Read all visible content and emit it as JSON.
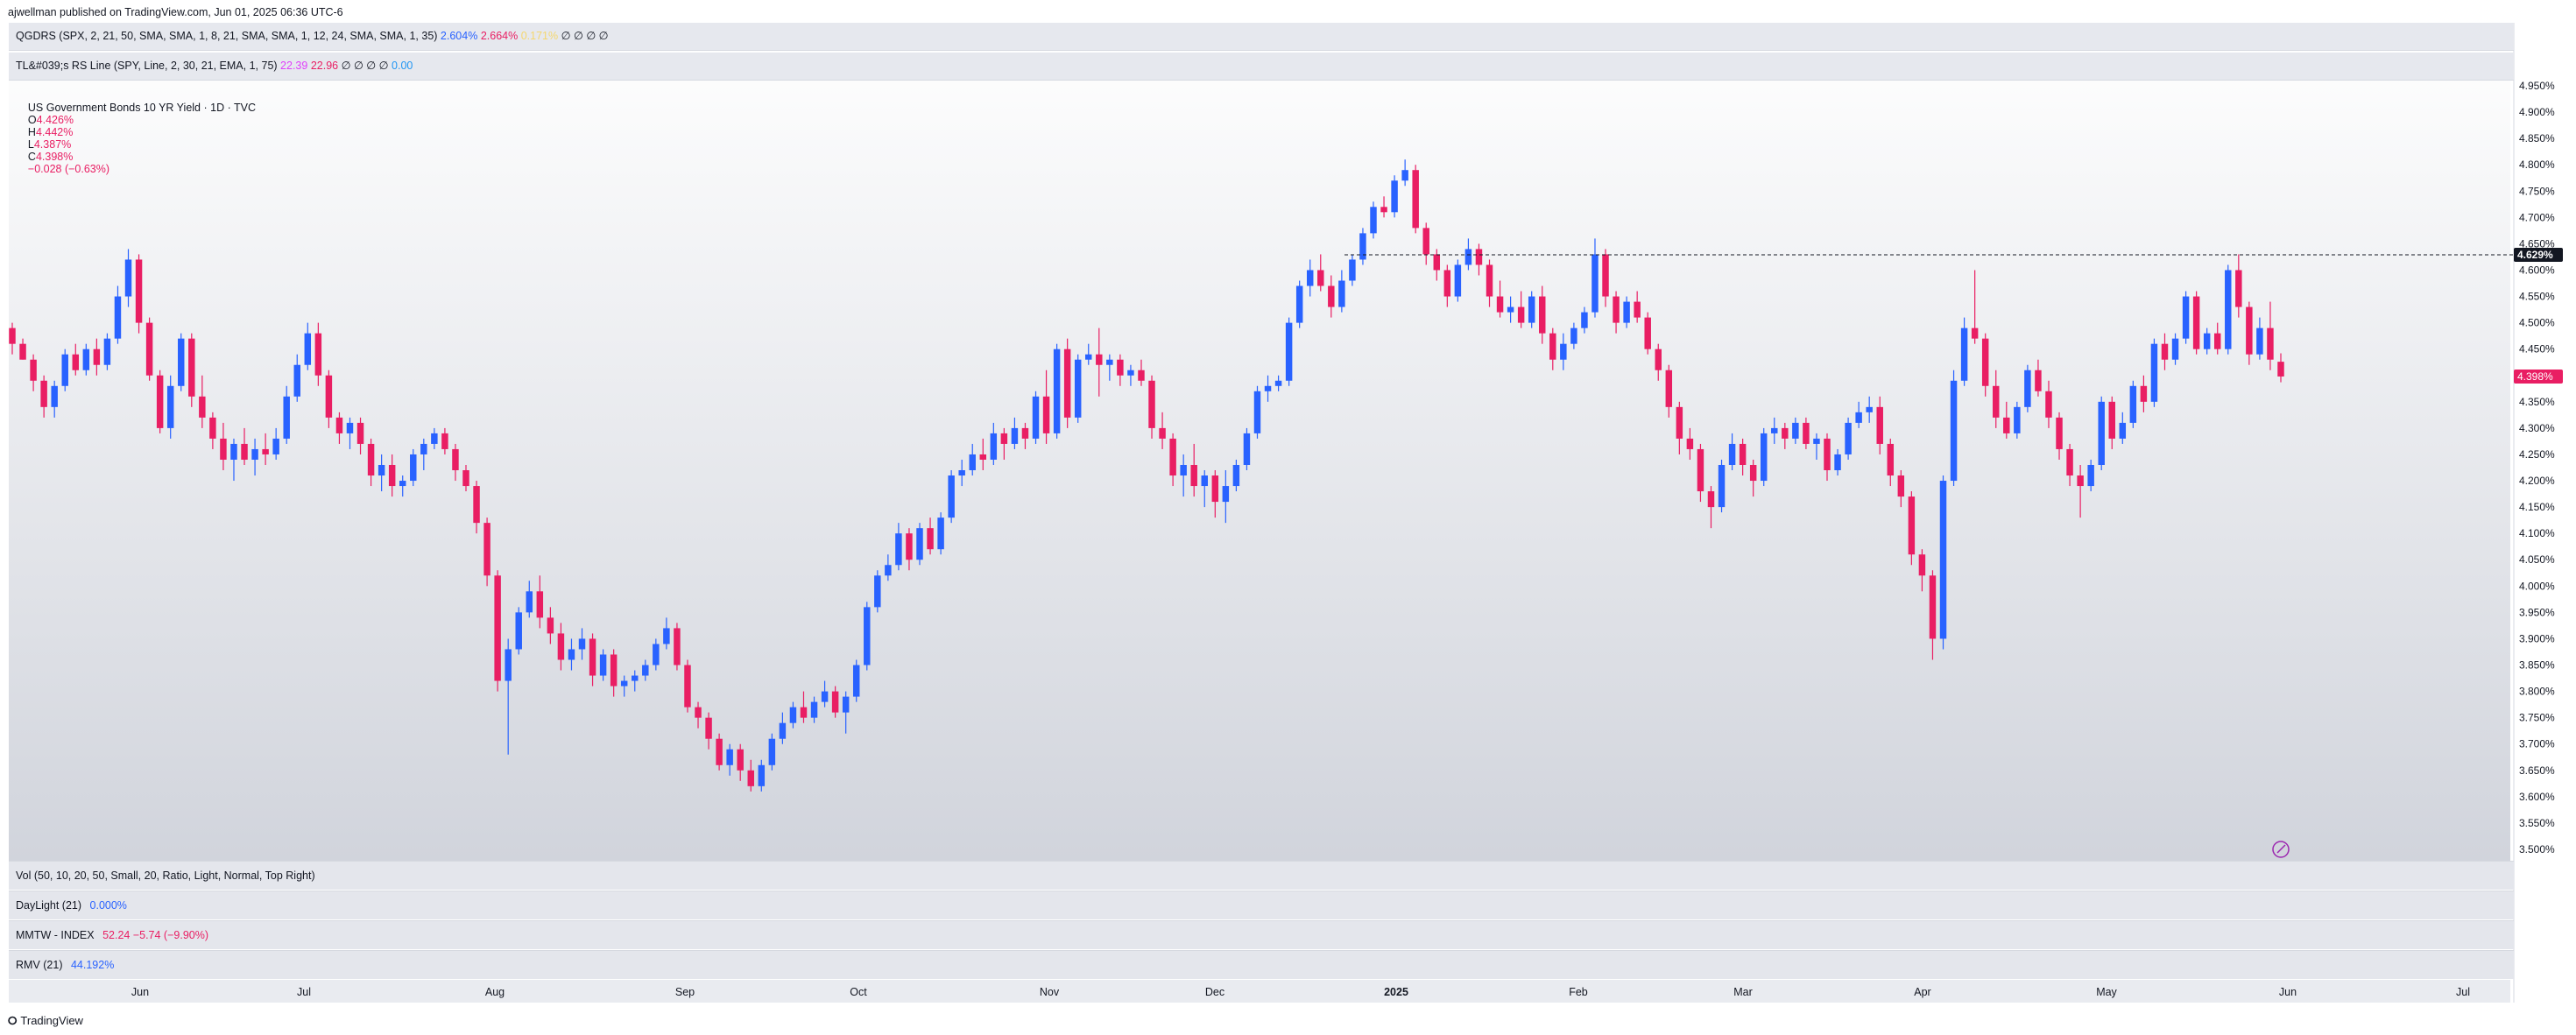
{
  "header": {
    "published": "ajwellman published on TradingView.com, Jun 01, 2025 06:36 UTC-6"
  },
  "indicators": {
    "qgdrs": {
      "label": "QGDRS (SPX, 2, 21, 50, SMA, SMA, 1, 8, 21, SMA, SMA, 1, 12, 24, SMA, SMA, 1, 35)",
      "v1": "2.604%",
      "v2": "2.664%",
      "v3": "0.171%",
      "rest": "∅ ∅ ∅ ∅"
    },
    "tl_rs": {
      "label": "TL&#039;s RS Line (SPY, Line, 2, 30, 21, EMA, 1, 75)",
      "v1": "22.39",
      "v2": "22.96",
      "rest": "∅ ∅ ∅ ∅",
      "v3": "0.00"
    }
  },
  "symbol_legend": {
    "title": "US Government Bonds 10 YR Yield · 1D · TVC",
    "o_label": "O",
    "o": "4.426%",
    "h_label": "H",
    "h": "4.442%",
    "l_label": "L",
    "l": "4.387%",
    "c_label": "C",
    "c": "4.398%",
    "change": "−0.028 (−0.63%)"
  },
  "panes": {
    "vol": {
      "label": "Vol (50, 10, 20, 50, Small, 20, Ratio, Light, Normal, Top Right)"
    },
    "daylight": {
      "label": "DayLight (21)",
      "value": "0.000%"
    },
    "mmtw": {
      "label": "MMTW - INDEX",
      "value": "52.24",
      "change": "−5.74 (−9.90%)"
    },
    "rmv": {
      "label": "RMV (21)",
      "value": "44.192%"
    }
  },
  "footer": {
    "brand": "TradingView"
  },
  "colors": {
    "up": "#2962ff",
    "down": "#e91e63",
    "grid_bg_top": "#ffffff",
    "grid_bg_bottom": "#d1d4dc"
  },
  "chart_data": {
    "type": "candlestick",
    "x_ticks": [
      "Jun",
      "Jul",
      "Aug",
      "Sep",
      "Oct",
      "Nov",
      "Dec",
      "2025",
      "Feb",
      "Mar",
      "Apr",
      "May",
      "Jun",
      "Jul"
    ],
    "y_ticks": [
      "4.950%",
      "4.900%",
      "4.850%",
      "4.800%",
      "4.750%",
      "4.700%",
      "4.650%",
      "4.600%",
      "4.550%",
      "4.500%",
      "4.450%",
      "4.400%",
      "4.350%",
      "4.300%",
      "4.250%",
      "4.200%",
      "4.150%",
      "4.100%",
      "4.050%",
      "4.000%",
      "3.950%",
      "3.900%",
      "3.850%",
      "3.800%",
      "3.750%",
      "3.700%",
      "3.650%",
      "3.600%",
      "3.550%",
      "3.500%"
    ],
    "ylim": [
      3.5,
      4.95
    ],
    "horizontal_line": {
      "value": 4.629,
      "label": "4.629%"
    },
    "last_price_label": "4.398%",
    "ohlc": [
      [
        4.49,
        4.5,
        4.44,
        4.46
      ],
      [
        4.46,
        4.47,
        4.43,
        4.43
      ],
      [
        4.43,
        4.44,
        4.37,
        4.39
      ],
      [
        4.39,
        4.4,
        4.32,
        4.34
      ],
      [
        4.34,
        4.39,
        4.32,
        4.38
      ],
      [
        4.38,
        4.45,
        4.37,
        4.44
      ],
      [
        4.44,
        4.46,
        4.4,
        4.41
      ],
      [
        4.41,
        4.46,
        4.4,
        4.45
      ],
      [
        4.45,
        4.47,
        4.4,
        4.42
      ],
      [
        4.42,
        4.48,
        4.41,
        4.47
      ],
      [
        4.47,
        4.57,
        4.46,
        4.55
      ],
      [
        4.55,
        4.64,
        4.53,
        4.62
      ],
      [
        4.62,
        4.63,
        4.48,
        4.5
      ],
      [
        4.5,
        4.51,
        4.39,
        4.4
      ],
      [
        4.4,
        4.41,
        4.29,
        4.3
      ],
      [
        4.3,
        4.4,
        4.28,
        4.38
      ],
      [
        4.38,
        4.48,
        4.37,
        4.47
      ],
      [
        4.47,
        4.48,
        4.34,
        4.36
      ],
      [
        4.36,
        4.4,
        4.3,
        4.32
      ],
      [
        4.32,
        4.33,
        4.26,
        4.28
      ],
      [
        4.28,
        4.31,
        4.22,
        4.24
      ],
      [
        4.24,
        4.28,
        4.2,
        4.27
      ],
      [
        4.27,
        4.3,
        4.23,
        4.24
      ],
      [
        4.24,
        4.28,
        4.21,
        4.26
      ],
      [
        4.26,
        4.29,
        4.23,
        4.25
      ],
      [
        4.25,
        4.3,
        4.24,
        4.28
      ],
      [
        4.28,
        4.38,
        4.27,
        4.36
      ],
      [
        4.36,
        4.44,
        4.35,
        4.42
      ],
      [
        4.42,
        4.5,
        4.41,
        4.48
      ],
      [
        4.48,
        4.5,
        4.38,
        4.4
      ],
      [
        4.4,
        4.41,
        4.3,
        4.32
      ],
      [
        4.32,
        4.33,
        4.27,
        4.29
      ],
      [
        4.29,
        4.32,
        4.26,
        4.31
      ],
      [
        4.31,
        4.32,
        4.25,
        4.27
      ],
      [
        4.27,
        4.28,
        4.19,
        4.21
      ],
      [
        4.21,
        4.25,
        4.18,
        4.23
      ],
      [
        4.23,
        4.25,
        4.17,
        4.19
      ],
      [
        4.19,
        4.21,
        4.17,
        4.2
      ],
      [
        4.2,
        4.26,
        4.19,
        4.25
      ],
      [
        4.25,
        4.28,
        4.22,
        4.27
      ],
      [
        4.27,
        4.3,
        4.26,
        4.29
      ],
      [
        4.29,
        4.3,
        4.25,
        4.26
      ],
      [
        4.26,
        4.27,
        4.2,
        4.22
      ],
      [
        4.22,
        4.23,
        4.18,
        4.19
      ],
      [
        4.19,
        4.2,
        4.1,
        4.12
      ],
      [
        4.12,
        4.13,
        4.0,
        4.02
      ],
      [
        4.02,
        4.03,
        3.8,
        3.82
      ],
      [
        3.82,
        3.9,
        3.68,
        3.88
      ],
      [
        3.88,
        3.96,
        3.87,
        3.95
      ],
      [
        3.95,
        4.01,
        3.94,
        3.99
      ],
      [
        3.99,
        4.02,
        3.92,
        3.94
      ],
      [
        3.94,
        3.96,
        3.89,
        3.91
      ],
      [
        3.91,
        3.93,
        3.84,
        3.86
      ],
      [
        3.86,
        3.9,
        3.84,
        3.88
      ],
      [
        3.88,
        3.92,
        3.86,
        3.9
      ],
      [
        3.9,
        3.91,
        3.81,
        3.83
      ],
      [
        3.83,
        3.88,
        3.82,
        3.87
      ],
      [
        3.87,
        3.88,
        3.79,
        3.81
      ],
      [
        3.81,
        3.83,
        3.79,
        3.82
      ],
      [
        3.82,
        3.84,
        3.8,
        3.83
      ],
      [
        3.83,
        3.86,
        3.82,
        3.85
      ],
      [
        3.85,
        3.9,
        3.84,
        3.89
      ],
      [
        3.89,
        3.94,
        3.88,
        3.92
      ],
      [
        3.92,
        3.93,
        3.84,
        3.85
      ],
      [
        3.85,
        3.86,
        3.76,
        3.77
      ],
      [
        3.77,
        3.78,
        3.73,
        3.75
      ],
      [
        3.75,
        3.76,
        3.69,
        3.71
      ],
      [
        3.71,
        3.72,
        3.65,
        3.66
      ],
      [
        3.66,
        3.7,
        3.64,
        3.69
      ],
      [
        3.69,
        3.7,
        3.63,
        3.65
      ],
      [
        3.65,
        3.67,
        3.61,
        3.62
      ],
      [
        3.62,
        3.67,
        3.61,
        3.66
      ],
      [
        3.66,
        3.72,
        3.65,
        3.71
      ],
      [
        3.71,
        3.76,
        3.7,
        3.74
      ],
      [
        3.74,
        3.78,
        3.73,
        3.77
      ],
      [
        3.77,
        3.8,
        3.74,
        3.75
      ],
      [
        3.75,
        3.79,
        3.74,
        3.78
      ],
      [
        3.78,
        3.82,
        3.77,
        3.8
      ],
      [
        3.8,
        3.81,
        3.75,
        3.76
      ],
      [
        3.76,
        3.8,
        3.72,
        3.79
      ],
      [
        3.79,
        3.86,
        3.78,
        3.85
      ],
      [
        3.85,
        3.97,
        3.84,
        3.96
      ],
      [
        3.96,
        4.03,
        3.95,
        4.02
      ],
      [
        4.02,
        4.06,
        4.01,
        4.04
      ],
      [
        4.04,
        4.12,
        4.03,
        4.1
      ],
      [
        4.1,
        4.11,
        4.03,
        4.05
      ],
      [
        4.05,
        4.12,
        4.04,
        4.11
      ],
      [
        4.11,
        4.13,
        4.06,
        4.07
      ],
      [
        4.07,
        4.14,
        4.06,
        4.13
      ],
      [
        4.13,
        4.22,
        4.12,
        4.21
      ],
      [
        4.21,
        4.24,
        4.19,
        4.22
      ],
      [
        4.22,
        4.27,
        4.21,
        4.25
      ],
      [
        4.25,
        4.28,
        4.22,
        4.24
      ],
      [
        4.24,
        4.31,
        4.23,
        4.29
      ],
      [
        4.29,
        4.3,
        4.24,
        4.27
      ],
      [
        4.27,
        4.32,
        4.26,
        4.3
      ],
      [
        4.3,
        4.31,
        4.26,
        4.28
      ],
      [
        4.28,
        4.37,
        4.27,
        4.36
      ],
      [
        4.36,
        4.41,
        4.27,
        4.29
      ],
      [
        4.29,
        4.46,
        4.28,
        4.45
      ],
      [
        4.45,
        4.47,
        4.3,
        4.32
      ],
      [
        4.32,
        4.44,
        4.31,
        4.43
      ],
      [
        4.43,
        4.46,
        4.42,
        4.44
      ],
      [
        4.44,
        4.49,
        4.36,
        4.42
      ],
      [
        4.42,
        4.44,
        4.39,
        4.43
      ],
      [
        4.43,
        4.44,
        4.38,
        4.4
      ],
      [
        4.4,
        4.42,
        4.38,
        4.41
      ],
      [
        4.41,
        4.43,
        4.38,
        4.39
      ],
      [
        4.39,
        4.4,
        4.28,
        4.3
      ],
      [
        4.3,
        4.33,
        4.26,
        4.28
      ],
      [
        4.28,
        4.29,
        4.19,
        4.21
      ],
      [
        4.21,
        4.25,
        4.17,
        4.23
      ],
      [
        4.23,
        4.27,
        4.17,
        4.19
      ],
      [
        4.19,
        4.22,
        4.15,
        4.21
      ],
      [
        4.21,
        4.22,
        4.13,
        4.16
      ],
      [
        4.16,
        4.22,
        4.12,
        4.19
      ],
      [
        4.19,
        4.24,
        4.18,
        4.23
      ],
      [
        4.23,
        4.3,
        4.22,
        4.29
      ],
      [
        4.29,
        4.38,
        4.28,
        4.37
      ],
      [
        4.37,
        4.4,
        4.35,
        4.38
      ],
      [
        4.38,
        4.4,
        4.37,
        4.39
      ],
      [
        4.39,
        4.51,
        4.38,
        4.5
      ],
      [
        4.5,
        4.58,
        4.49,
        4.57
      ],
      [
        4.57,
        4.62,
        4.55,
        4.6
      ],
      [
        4.6,
        4.63,
        4.56,
        4.57
      ],
      [
        4.57,
        4.59,
        4.51,
        4.53
      ],
      [
        4.53,
        4.6,
        4.52,
        4.58
      ],
      [
        4.58,
        4.63,
        4.57,
        4.62
      ],
      [
        4.62,
        4.68,
        4.61,
        4.67
      ],
      [
        4.67,
        4.73,
        4.66,
        4.72
      ],
      [
        4.72,
        4.74,
        4.7,
        4.71
      ],
      [
        4.71,
        4.78,
        4.7,
        4.77
      ],
      [
        4.77,
        4.81,
        4.76,
        4.79
      ],
      [
        4.79,
        4.8,
        4.67,
        4.68
      ],
      [
        4.68,
        4.69,
        4.61,
        4.63
      ],
      [
        4.63,
        4.64,
        4.58,
        4.6
      ],
      [
        4.6,
        4.61,
        4.53,
        4.55
      ],
      [
        4.55,
        4.62,
        4.54,
        4.61
      ],
      [
        4.61,
        4.66,
        4.6,
        4.64
      ],
      [
        4.64,
        4.65,
        4.59,
        4.61
      ],
      [
        4.61,
        4.62,
        4.53,
        4.55
      ],
      [
        4.55,
        4.58,
        4.51,
        4.52
      ],
      [
        4.52,
        4.55,
        4.5,
        4.53
      ],
      [
        4.53,
        4.56,
        4.49,
        4.5
      ],
      [
        4.5,
        4.56,
        4.49,
        4.55
      ],
      [
        4.55,
        4.57,
        4.46,
        4.48
      ],
      [
        4.48,
        4.49,
        4.41,
        4.43
      ],
      [
        4.43,
        4.48,
        4.41,
        4.46
      ],
      [
        4.46,
        4.5,
        4.45,
        4.49
      ],
      [
        4.49,
        4.53,
        4.48,
        4.52
      ],
      [
        4.52,
        4.66,
        4.51,
        4.63
      ],
      [
        4.63,
        4.64,
        4.53,
        4.55
      ],
      [
        4.55,
        4.56,
        4.48,
        4.5
      ],
      [
        4.5,
        4.55,
        4.49,
        4.54
      ],
      [
        4.54,
        4.56,
        4.5,
        4.51
      ],
      [
        4.51,
        4.52,
        4.44,
        4.45
      ],
      [
        4.45,
        4.46,
        4.39,
        4.41
      ],
      [
        4.41,
        4.42,
        4.32,
        4.34
      ],
      [
        4.34,
        4.35,
        4.25,
        4.28
      ],
      [
        4.28,
        4.3,
        4.24,
        4.26
      ],
      [
        4.26,
        4.27,
        4.16,
        4.18
      ],
      [
        4.18,
        4.19,
        4.11,
        4.15
      ],
      [
        4.15,
        4.24,
        4.14,
        4.23
      ],
      [
        4.23,
        4.29,
        4.22,
        4.27
      ],
      [
        4.27,
        4.28,
        4.21,
        4.23
      ],
      [
        4.23,
        4.24,
        4.17,
        4.2
      ],
      [
        4.2,
        4.3,
        4.19,
        4.29
      ],
      [
        4.29,
        4.32,
        4.27,
        4.3
      ],
      [
        4.3,
        4.31,
        4.26,
        4.28
      ],
      [
        4.28,
        4.32,
        4.27,
        4.31
      ],
      [
        4.31,
        4.32,
        4.26,
        4.27
      ],
      [
        4.27,
        4.29,
        4.24,
        4.28
      ],
      [
        4.28,
        4.29,
        4.2,
        4.22
      ],
      [
        4.22,
        4.26,
        4.21,
        4.25
      ],
      [
        4.25,
        4.32,
        4.24,
        4.31
      ],
      [
        4.31,
        4.35,
        4.3,
        4.33
      ],
      [
        4.33,
        4.36,
        4.31,
        4.34
      ],
      [
        4.34,
        4.36,
        4.25,
        4.27
      ],
      [
        4.27,
        4.28,
        4.19,
        4.21
      ],
      [
        4.21,
        4.22,
        4.15,
        4.17
      ],
      [
        4.17,
        4.18,
        4.04,
        4.06
      ],
      [
        4.06,
        4.07,
        3.99,
        4.02
      ],
      [
        4.02,
        4.03,
        3.86,
        3.9
      ],
      [
        3.9,
        4.21,
        3.88,
        4.2
      ],
      [
        4.2,
        4.41,
        4.19,
        4.39
      ],
      [
        4.39,
        4.51,
        4.38,
        4.49
      ],
      [
        4.49,
        4.6,
        4.46,
        4.47
      ],
      [
        4.47,
        4.48,
        4.36,
        4.38
      ],
      [
        4.38,
        4.41,
        4.3,
        4.32
      ],
      [
        4.32,
        4.35,
        4.28,
        4.29
      ],
      [
        4.29,
        4.35,
        4.28,
        4.34
      ],
      [
        4.34,
        4.42,
        4.33,
        4.41
      ],
      [
        4.41,
        4.43,
        4.36,
        4.37
      ],
      [
        4.37,
        4.39,
        4.3,
        4.32
      ],
      [
        4.32,
        4.33,
        4.24,
        4.26
      ],
      [
        4.26,
        4.27,
        4.19,
        4.21
      ],
      [
        4.21,
        4.23,
        4.13,
        4.19
      ],
      [
        4.19,
        4.24,
        4.18,
        4.23
      ],
      [
        4.23,
        4.36,
        4.22,
        4.35
      ],
      [
        4.35,
        4.36,
        4.26,
        4.28
      ],
      [
        4.28,
        4.33,
        4.27,
        4.31
      ],
      [
        4.31,
        4.39,
        4.3,
        4.38
      ],
      [
        4.38,
        4.4,
        4.33,
        4.35
      ],
      [
        4.35,
        4.47,
        4.34,
        4.46
      ],
      [
        4.46,
        4.48,
        4.41,
        4.43
      ],
      [
        4.43,
        4.48,
        4.42,
        4.47
      ],
      [
        4.47,
        4.56,
        4.46,
        4.55
      ],
      [
        4.55,
        4.56,
        4.44,
        4.45
      ],
      [
        4.45,
        4.49,
        4.44,
        4.48
      ],
      [
        4.48,
        4.5,
        4.44,
        4.45
      ],
      [
        4.45,
        4.61,
        4.44,
        4.6
      ],
      [
        4.6,
        4.63,
        4.51,
        4.53
      ],
      [
        4.53,
        4.54,
        4.42,
        4.44
      ],
      [
        4.44,
        4.51,
        4.43,
        4.49
      ],
      [
        4.49,
        4.54,
        4.41,
        4.43
      ],
      [
        4.426,
        4.442,
        4.387,
        4.398
      ]
    ]
  }
}
